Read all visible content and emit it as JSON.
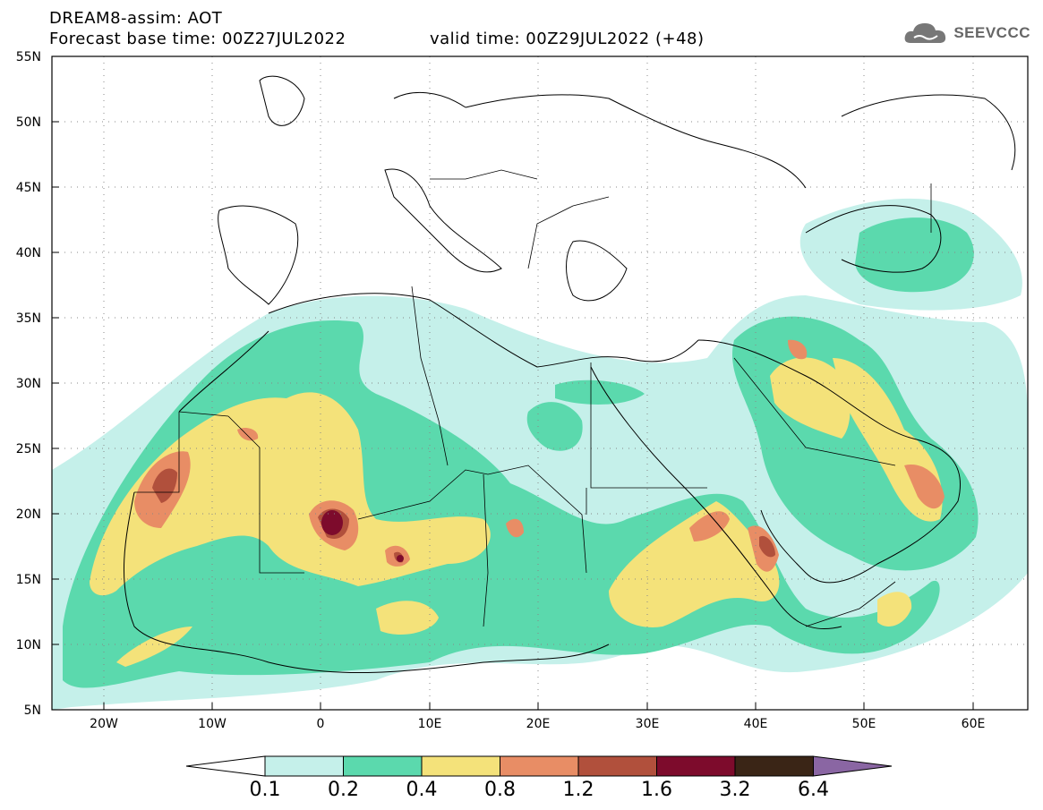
{
  "header": {
    "title": "DREAM8-assim: AOT",
    "base_time": "Forecast base time: 00Z27JUL2022",
    "valid_time": "valid time: 00Z29JUL2022 (+48)"
  },
  "logo": {
    "text": "SEEVCCC",
    "icon": "cloud-icon"
  },
  "axes": {
    "lon_ticks": [
      "20W",
      "10W",
      "0",
      "10E",
      "20E",
      "30E",
      "40E",
      "50E",
      "60E"
    ],
    "lat_ticks": [
      "55N",
      "50N",
      "45N",
      "40N",
      "35N",
      "30N",
      "25N",
      "20N",
      "15N",
      "10N",
      "5N"
    ],
    "lon_range": [
      -25,
      65
    ],
    "lat_range": [
      5,
      55
    ],
    "grid": "dotted"
  },
  "colorbar": {
    "labels": [
      "0.1",
      "0.2",
      "0.4",
      "0.8",
      "1.2",
      "1.6",
      "3.2",
      "6.4"
    ],
    "colors": [
      "#c5f0ea",
      "#5bd9ad",
      "#f4e27a",
      "#e88d65",
      "#b1503c",
      "#7d0b2c",
      "#3a2516",
      "#8a66a3"
    ],
    "under_color": "#ffffff"
  }
}
